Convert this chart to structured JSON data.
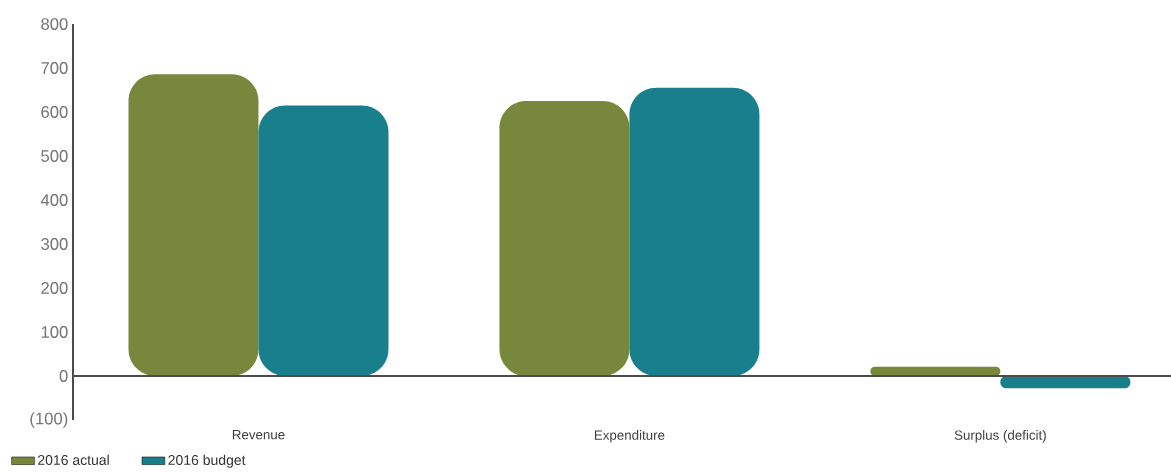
{
  "chart_data": {
    "type": "bar",
    "categories": [
      "Revenue",
      "Expenditure",
      "Surplus (deficit)"
    ],
    "series": [
      {
        "name": "2016 actual",
        "color": "#77873c",
        "values": [
          686,
          625,
          21
        ]
      },
      {
        "name": "2016 budget",
        "color": "#1a7f8c",
        "values": [
          615,
          655,
          -28
        ]
      }
    ],
    "ylim": [
      -100,
      800
    ],
    "yticks": [
      {
        "value": -100,
        "label": "(100)"
      },
      0,
      100,
      200,
      300,
      400,
      500,
      600,
      700,
      800
    ],
    "legend": "bottom left"
  }
}
